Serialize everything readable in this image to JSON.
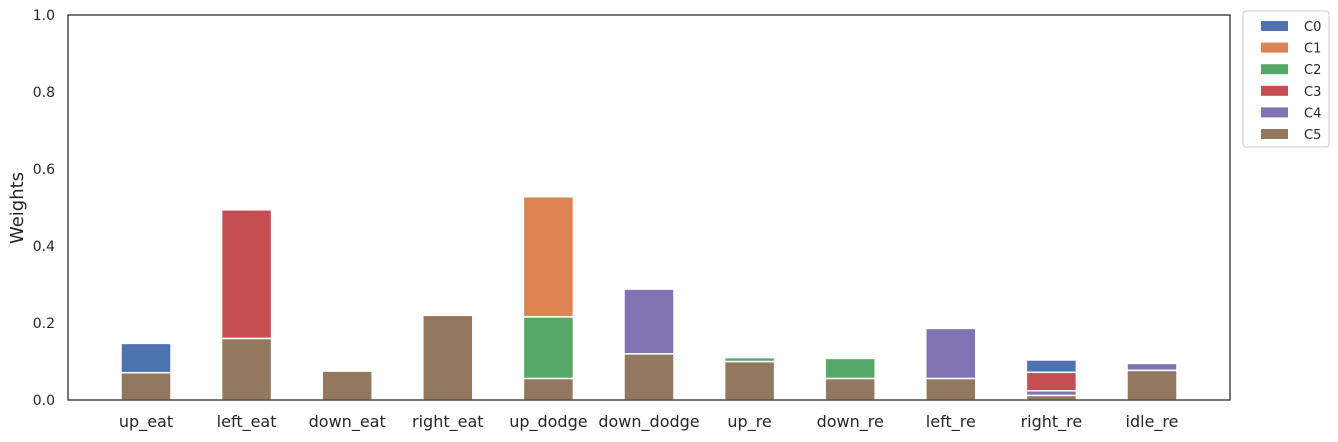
{
  "chart_data": {
    "type": "bar",
    "stacked": true,
    "title": "",
    "xlabel": "",
    "ylabel": "Weights",
    "ylim": [
      0,
      1
    ],
    "yticks": [
      "0.0",
      "0.2",
      "0.4",
      "0.6",
      "0.8",
      "1.0"
    ],
    "grid": false,
    "legend_position": "outside top-right",
    "categories": [
      "up_eat",
      "left_eat",
      "down_eat",
      "right_eat",
      "up_dodge",
      "down_dodge",
      "up_re",
      "down_re",
      "left_re",
      "right_re",
      "idle_re"
    ],
    "series": [
      {
        "name": "C0",
        "color": "#4c72b0",
        "values": [
          0.076,
          0,
          0,
          0,
          0,
          0,
          0,
          0,
          0,
          0.032,
          0
        ]
      },
      {
        "name": "C1",
        "color": "#dd8452",
        "values": [
          0,
          0,
          0,
          0,
          0.312,
          0,
          0,
          0,
          0,
          0,
          0
        ]
      },
      {
        "name": "C2",
        "color": "#55a868",
        "values": [
          0,
          0,
          0,
          0,
          0.16,
          0,
          0.01,
          0.052,
          0,
          0,
          0
        ]
      },
      {
        "name": "C3",
        "color": "#c44e52",
        "values": [
          0,
          0.334,
          0,
          0,
          0,
          0,
          0,
          0,
          0,
          0.048,
          0
        ]
      },
      {
        "name": "C4",
        "color": "#8172b3",
        "values": [
          0,
          0,
          0,
          0,
          0,
          0.168,
          0,
          0,
          0.13,
          0.012,
          0.018
        ]
      },
      {
        "name": "C5",
        "color": "#937860",
        "values": [
          0.071,
          0.16,
          0.075,
          0.22,
          0.056,
          0.12,
          0.1,
          0.056,
          0.056,
          0.012,
          0.077
        ]
      }
    ]
  }
}
